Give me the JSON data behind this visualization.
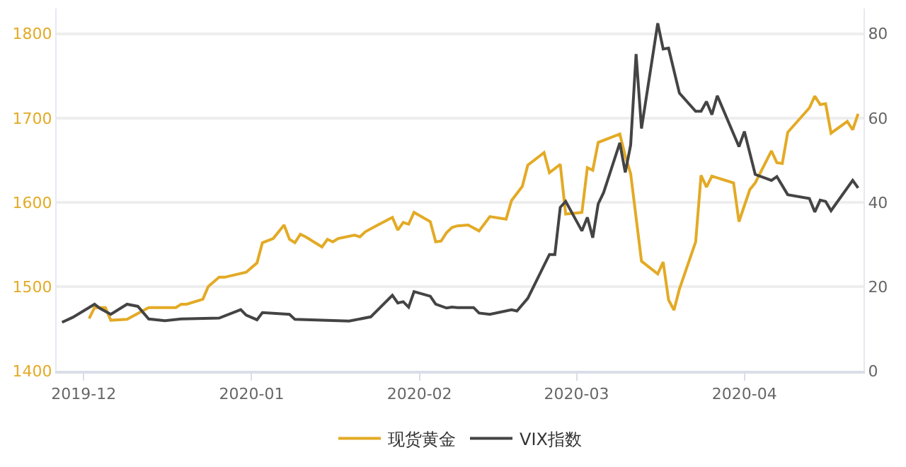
{
  "chart_data": {
    "type": "line",
    "xlim": [
      "2019-11-26",
      "2020-04-23"
    ],
    "xticks": [
      {
        "value": "2019-12-01",
        "label": "2019-12"
      },
      {
        "value": "2020-01-01",
        "label": "2020-01"
      },
      {
        "value": "2020-02-01",
        "label": "2020-02"
      },
      {
        "value": "2020-03-01",
        "label": "2020-03"
      },
      {
        "value": "2020-04-01",
        "label": "2020-04"
      }
    ],
    "ylim": [
      1400,
      1830
    ],
    "yticks": [
      1400,
      1500,
      1600,
      1700,
      1800
    ],
    "y2lim": [
      0,
      86
    ],
    "y2ticks": [
      0,
      20,
      40,
      60,
      80
    ],
    "grid": "y",
    "legend": "bottom",
    "marker": "none",
    "line_style": "solid",
    "series": [
      {
        "name": "现货黄金",
        "color": "#e3aa25",
        "x": [
          "2019-12-02",
          "2019-12-03",
          "2019-12-05",
          "2019-12-06",
          "2019-12-09",
          "2019-12-11",
          "2019-12-13",
          "2019-12-18",
          "2019-12-19",
          "2019-12-20",
          "2019-12-23",
          "2019-12-24",
          "2019-12-26",
          "2019-12-27",
          "2019-12-31",
          "2020-01-02",
          "2020-01-03",
          "2020-01-05",
          "2020-01-06",
          "2020-01-07",
          "2020-01-08",
          "2020-01-09",
          "2020-01-10",
          "2020-01-11",
          "2020-01-14",
          "2020-01-15",
          "2020-01-16",
          "2020-01-17",
          "2020-01-20",
          "2020-01-21",
          "2020-01-22",
          "2020-01-24",
          "2020-01-27",
          "2020-01-28",
          "2020-01-29",
          "2020-01-30",
          "2020-01-31",
          "2020-02-03",
          "2020-02-04",
          "2020-02-05",
          "2020-02-06",
          "2020-02-07",
          "2020-02-08",
          "2020-02-10",
          "2020-02-12",
          "2020-02-14",
          "2020-02-17",
          "2020-02-18",
          "2020-02-20",
          "2020-02-21",
          "2020-02-24",
          "2020-02-25",
          "2020-02-27",
          "2020-02-28",
          "2020-03-02",
          "2020-03-03",
          "2020-03-04",
          "2020-03-05",
          "2020-03-09",
          "2020-03-10",
          "2020-03-11",
          "2020-03-13",
          "2020-03-16",
          "2020-03-17",
          "2020-03-18",
          "2020-03-19",
          "2020-03-20",
          "2020-03-23",
          "2020-03-24",
          "2020-03-25",
          "2020-03-26",
          "2020-03-30",
          "2020-03-31",
          "2020-04-02",
          "2020-04-03",
          "2020-04-06",
          "2020-04-07",
          "2020-04-08",
          "2020-04-09",
          "2020-04-13",
          "2020-04-14",
          "2020-04-15",
          "2020-04-16",
          "2020-04-17",
          "2020-04-20",
          "2020-04-21",
          "2020-04-22"
        ],
        "values": [
          1462,
          1475,
          1475,
          1460,
          1461,
          1468,
          1475,
          1475,
          1479,
          1479,
          1485,
          1500,
          1511,
          1511,
          1517,
          1528,
          1552,
          1557,
          1565,
          1573,
          1556,
          1552,
          1562,
          1559,
          1547,
          1556,
          1553,
          1557,
          1561,
          1559,
          1565,
          1572,
          1582,
          1567,
          1576,
          1574,
          1588,
          1577,
          1553,
          1554,
          1564,
          1570,
          1572,
          1573,
          1566,
          1583,
          1580,
          1602,
          1619,
          1644,
          1659,
          1635,
          1645,
          1586,
          1588,
          1641,
          1638,
          1671,
          1681,
          1655,
          1634,
          1530,
          1515,
          1529,
          1484,
          1472,
          1497,
          1553,
          1632,
          1618,
          1631,
          1623,
          1577,
          1615,
          1623,
          1661,
          1647,
          1646,
          1683,
          1712,
          1726,
          1716,
          1717,
          1682,
          1696,
          1686,
          1705
        ]
      },
      {
        "name": "VIX指数",
        "color": "#444444",
        "axis": "y2",
        "x": [
          "2019-11-27",
          "2019-11-29",
          "2019-12-03",
          "2019-12-04",
          "2019-12-06",
          "2019-12-09",
          "2019-12-11",
          "2019-12-13",
          "2019-12-16",
          "2019-12-19",
          "2019-12-26",
          "2019-12-30",
          "2019-12-31",
          "2020-01-02",
          "2020-01-03",
          "2020-01-08",
          "2020-01-09",
          "2020-01-17",
          "2020-01-19",
          "2020-01-23",
          "2020-01-27",
          "2020-01-28",
          "2020-01-29",
          "2020-01-30",
          "2020-01-31",
          "2020-02-03",
          "2020-02-04",
          "2020-02-06",
          "2020-02-07",
          "2020-02-08",
          "2020-02-11",
          "2020-02-12",
          "2020-02-14",
          "2020-02-18",
          "2020-02-19",
          "2020-02-21",
          "2020-02-25",
          "2020-02-26",
          "2020-02-27",
          "2020-02-28",
          "2020-03-02",
          "2020-03-03",
          "2020-03-04",
          "2020-03-05",
          "2020-03-06",
          "2020-03-09",
          "2020-03-10",
          "2020-03-11",
          "2020-03-12",
          "2020-03-13",
          "2020-03-16",
          "2020-03-17",
          "2020-03-18",
          "2020-03-20",
          "2020-03-23",
          "2020-03-24",
          "2020-03-25",
          "2020-03-26",
          "2020-03-27",
          "2020-03-31",
          "2020-04-01",
          "2020-04-03",
          "2020-04-06",
          "2020-04-07",
          "2020-04-09",
          "2020-04-13",
          "2020-04-14",
          "2020-04-15",
          "2020-04-16",
          "2020-04-17",
          "2020-04-21",
          "2020-04-22"
        ],
        "values": [
          11.5,
          12.7,
          15.8,
          14.8,
          13.4,
          15.8,
          15.3,
          12.3,
          11.9,
          12.3,
          12.5,
          14.5,
          13.2,
          12.1,
          13.8,
          13.4,
          12.2,
          11.9,
          11.8,
          12.8,
          17.9,
          16.1,
          16.4,
          15.1,
          18.8,
          17.7,
          15.8,
          14.9,
          15.1,
          15.0,
          15.0,
          13.7,
          13.4,
          14.5,
          14.2,
          17.2,
          27.6,
          27.6,
          38.8,
          40.2,
          33.2,
          36.4,
          31.6,
          39.6,
          42.3,
          54.1,
          47.1,
          53.6,
          75.2,
          57.5,
          82.5,
          76.4,
          76.6,
          65.9,
          61.6,
          61.6,
          63.9,
          60.8,
          65.3,
          53.2,
          56.8,
          46.6,
          45.2,
          46.1,
          41.8,
          40.9,
          37.7,
          40.5,
          40.2,
          38.0,
          45.2,
          43.4
        ]
      }
    ]
  }
}
